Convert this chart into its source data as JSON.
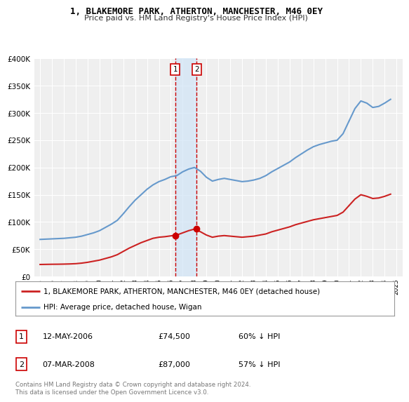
{
  "title": "1, BLAKEMORE PARK, ATHERTON, MANCHESTER, M46 0EY",
  "subtitle": "Price paid vs. HM Land Registry's House Price Index (HPI)",
  "hpi_color": "#6699cc",
  "price_color": "#cc2222",
  "annotation_color": "#cc0000",
  "background_color": "#ffffff",
  "plot_bg_color": "#efefef",
  "legend_label_price": "1, BLAKEMORE PARK, ATHERTON, MANCHESTER, M46 0EY (detached house)",
  "legend_label_hpi": "HPI: Average price, detached house, Wigan",
  "transaction1_date": "12-MAY-2006",
  "transaction1_price": "£74,500",
  "transaction1_pct": "60% ↓ HPI",
  "transaction2_date": "07-MAR-2008",
  "transaction2_price": "£87,000",
  "transaction2_pct": "57% ↓ HPI",
  "footer": "Contains HM Land Registry data © Crown copyright and database right 2024.\nThis data is licensed under the Open Government Licence v3.0.",
  "ylim": [
    0,
    400000
  ],
  "yticks": [
    0,
    50000,
    100000,
    150000,
    200000,
    250000,
    300000,
    350000,
    400000
  ],
  "xlim_start": 1994.5,
  "xlim_end": 2025.5,
  "hpi_years": [
    1995,
    1995.5,
    1996,
    1996.5,
    1997,
    1997.5,
    1998,
    1998.5,
    1999,
    1999.5,
    2000,
    2000.5,
    2001,
    2001.5,
    2002,
    2002.5,
    2003,
    2003.5,
    2004,
    2004.5,
    2005,
    2005.5,
    2006,
    2006.5,
    2007,
    2007.5,
    2008,
    2008.5,
    2009,
    2009.5,
    2010,
    2010.5,
    2011,
    2011.5,
    2012,
    2012.5,
    2013,
    2013.5,
    2014,
    2014.5,
    2015,
    2015.5,
    2016,
    2016.5,
    2017,
    2017.5,
    2018,
    2018.5,
    2019,
    2019.5,
    2020,
    2020.5,
    2021,
    2021.5,
    2022,
    2022.5,
    2023,
    2023.5,
    2024,
    2024.5
  ],
  "hpi_values": [
    68000,
    68500,
    69000,
    69500,
    70000,
    71000,
    72000,
    74000,
    77000,
    80000,
    84000,
    90000,
    96000,
    103000,
    115000,
    128000,
    140000,
    150000,
    160000,
    168000,
    174000,
    178000,
    183000,
    185000,
    192000,
    197000,
    200000,
    193000,
    182000,
    175000,
    178000,
    180000,
    178000,
    176000,
    174000,
    175000,
    177000,
    180000,
    185000,
    192000,
    198000,
    204000,
    210000,
    218000,
    225000,
    232000,
    238000,
    242000,
    245000,
    248000,
    250000,
    262000,
    285000,
    308000,
    322000,
    318000,
    310000,
    312000,
    318000,
    325000
  ],
  "price_years": [
    1995,
    1995.5,
    1996,
    1996.5,
    1997,
    1997.5,
    1998,
    1998.5,
    1999,
    1999.5,
    2000,
    2000.5,
    2001,
    2001.5,
    2002,
    2002.5,
    2003,
    2003.5,
    2004,
    2004.5,
    2005,
    2005.5,
    2006,
    2006.5,
    2007,
    2007.5,
    2008,
    2008.5,
    2009,
    2009.5,
    2010,
    2010.5,
    2011,
    2011.5,
    2012,
    2012.5,
    2013,
    2013.5,
    2014,
    2014.5,
    2015,
    2015.5,
    2016,
    2016.5,
    2017,
    2017.5,
    2018,
    2018.5,
    2019,
    2019.5,
    2020,
    2020.5,
    2021,
    2021.5,
    2022,
    2022.5,
    2023,
    2023.5,
    2024,
    2024.5
  ],
  "price_values": [
    22000,
    22200,
    22400,
    22500,
    22700,
    23000,
    23500,
    24500,
    26000,
    28000,
    30000,
    33000,
    36000,
    40000,
    46000,
    52000,
    57000,
    62000,
    66000,
    70000,
    72000,
    73000,
    74500,
    76000,
    80000,
    84000,
    87000,
    82000,
    76000,
    72000,
    74000,
    75000,
    74000,
    73000,
    72000,
    73000,
    74000,
    76000,
    78000,
    82000,
    85000,
    88000,
    91000,
    95000,
    98000,
    101000,
    104000,
    106000,
    108000,
    110000,
    112000,
    118000,
    130000,
    142000,
    150000,
    147000,
    143000,
    144000,
    147000,
    151000
  ],
  "transaction1_x": 2006.37,
  "transaction1_y": 74500,
  "transaction2_x": 2008.18,
  "transaction2_y": 87000,
  "vline1_x": 2006.37,
  "vline2_x": 2008.18,
  "shade_xmin": 2006.37,
  "shade_xmax": 2008.18,
  "xticks": [
    1995,
    1996,
    1997,
    1998,
    1999,
    2000,
    2001,
    2002,
    2003,
    2004,
    2005,
    2006,
    2007,
    2008,
    2009,
    2010,
    2011,
    2012,
    2013,
    2014,
    2015,
    2016,
    2017,
    2018,
    2019,
    2020,
    2021,
    2022,
    2023,
    2024,
    2025
  ]
}
